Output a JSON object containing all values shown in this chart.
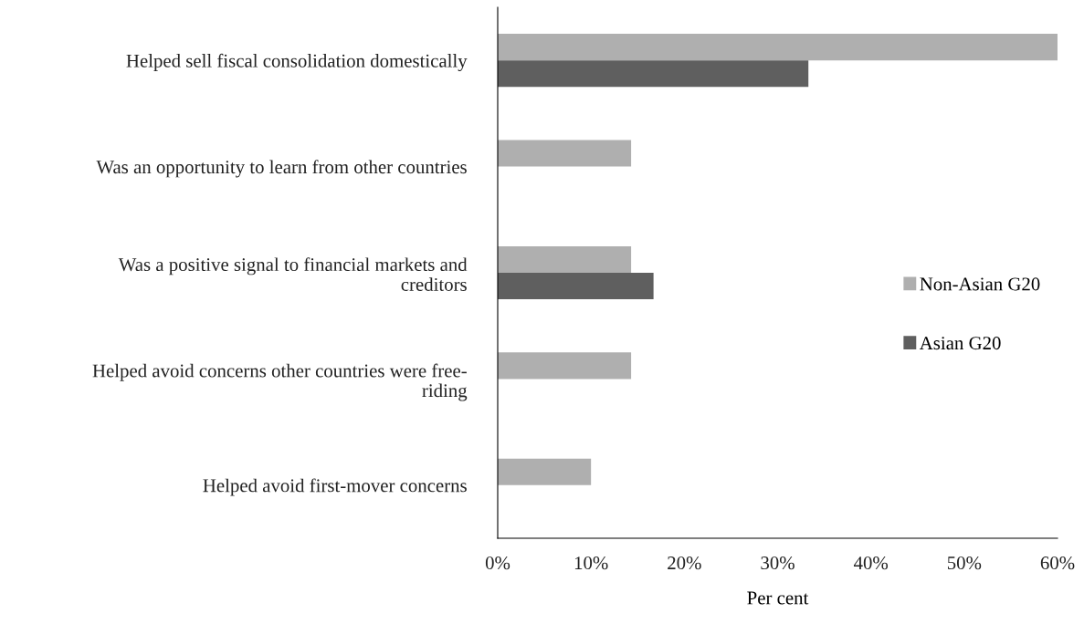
{
  "chart_data": {
    "type": "bar",
    "orientation": "horizontal",
    "xlabel": "Per cent",
    "categories": [
      "Helped sell fiscal consolidation domestically",
      "Was an opportunity to learn from other countries",
      "Was a positive signal to financial markets and\ncreditors",
      "Helped avoid concerns other countries were free-\nriding",
      "Helped avoid first-mover concerns"
    ],
    "series": [
      {
        "name": "Non-Asian G20",
        "color": "#afafaf",
        "values": [
          60,
          14.3,
          14.3,
          14.3,
          10
        ]
      },
      {
        "name": "Asian G20",
        "color": "#5f5f5f",
        "values": [
          33.3,
          0,
          16.7,
          0,
          0
        ]
      }
    ],
    "xlim": [
      0,
      60
    ],
    "xticks": [
      {
        "value": 0,
        "label": "0%"
      },
      {
        "value": 10,
        "label": "10%"
      },
      {
        "value": 20,
        "label": "20%"
      },
      {
        "value": 30,
        "label": "30%"
      },
      {
        "value": 40,
        "label": "40%"
      },
      {
        "value": 50,
        "label": "50%"
      },
      {
        "value": 60,
        "label": "60%"
      }
    ],
    "grid": false,
    "legend": "right"
  }
}
